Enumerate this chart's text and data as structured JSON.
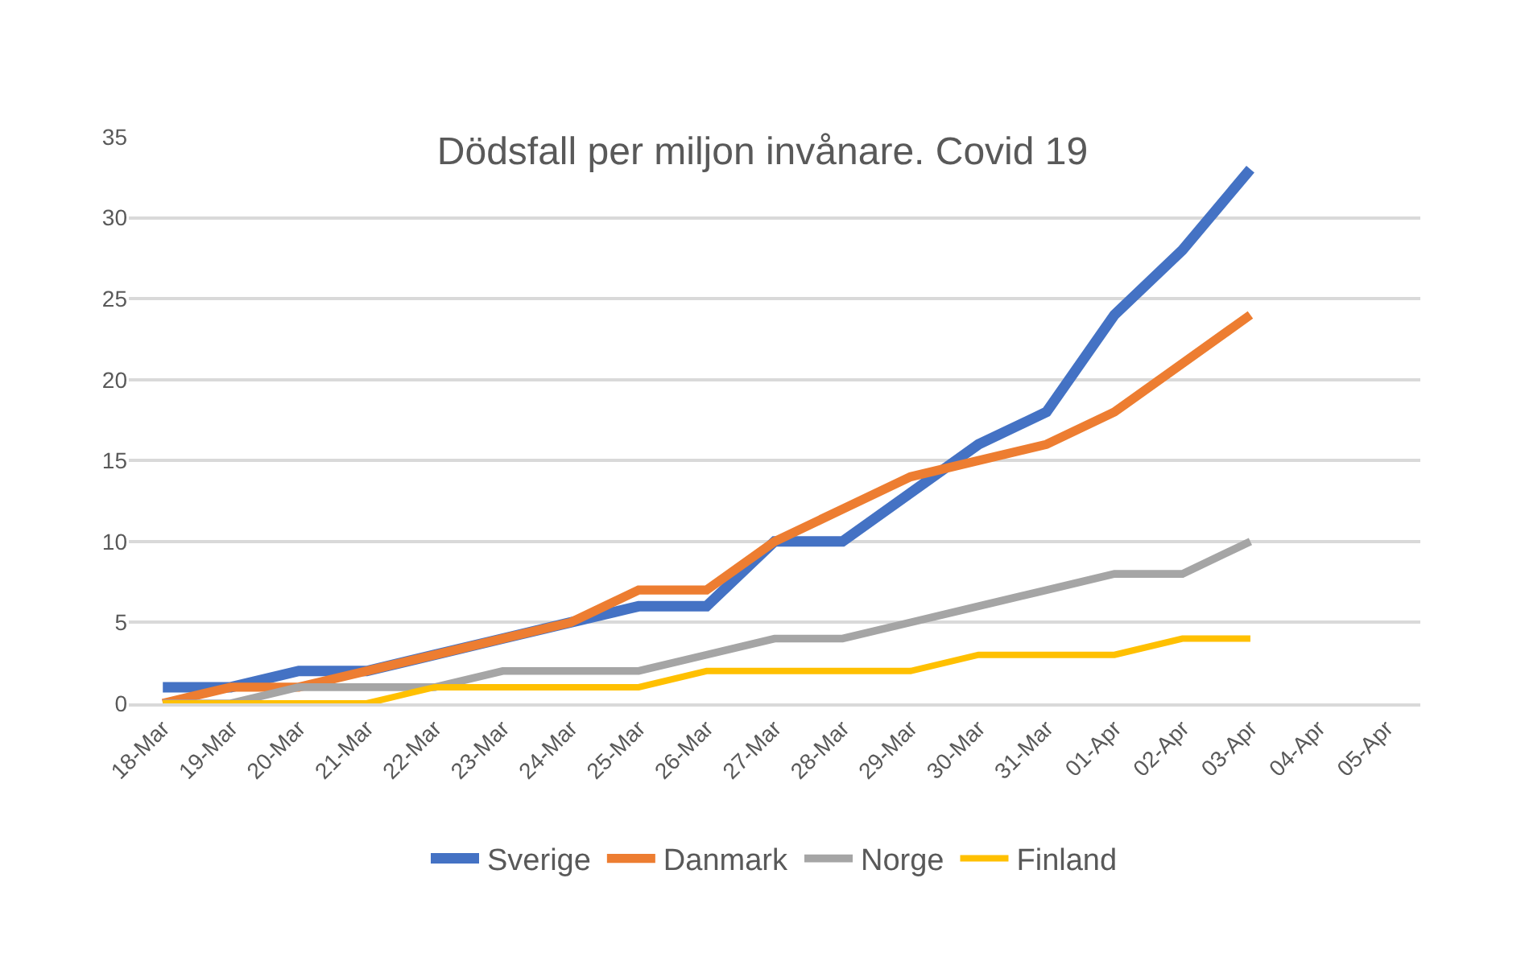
{
  "chart_data": {
    "type": "line",
    "title": "Dödsfall per miljon invånare. Covid 19",
    "categories": [
      "18-Mar",
      "19-Mar",
      "20-Mar",
      "21-Mar",
      "22-Mar",
      "23-Mar",
      "24-Mar",
      "25-Mar",
      "26-Mar",
      "27-Mar",
      "28-Mar",
      "29-Mar",
      "30-Mar",
      "31-Mar",
      "01-Apr",
      "02-Apr",
      "03-Apr",
      "04-Apr",
      "05-Apr"
    ],
    "series": [
      {
        "name": "Sverige",
        "color": "#4472c4",
        "values": [
          1,
          1,
          2,
          2,
          3,
          4,
          5,
          6,
          6,
          10,
          10,
          13,
          16,
          18,
          24,
          28,
          33,
          null,
          null
        ]
      },
      {
        "name": "Danmark",
        "color": "#ed7d31",
        "values": [
          0,
          1,
          1,
          2,
          3,
          4,
          5,
          7,
          7,
          10,
          12,
          14,
          15,
          16,
          18,
          21,
          24,
          null,
          null
        ]
      },
      {
        "name": "Norge",
        "color": "#a5a5a5",
        "values": [
          0,
          0,
          1,
          1,
          1,
          2,
          2,
          2,
          3,
          4,
          4,
          5,
          6,
          7,
          8,
          8,
          10,
          null,
          null
        ]
      },
      {
        "name": "Finland",
        "color": "#ffc000",
        "values": [
          0,
          0,
          0,
          0,
          1,
          1,
          1,
          1,
          2,
          2,
          2,
          2,
          3,
          3,
          3,
          4,
          4,
          null,
          null
        ]
      }
    ],
    "ylim": [
      0,
      35
    ],
    "yticks": [
      0,
      5,
      10,
      15,
      20,
      25,
      30,
      35
    ],
    "grid": "y",
    "legend": "bottom",
    "marker": "none",
    "line_style": "solid"
  }
}
